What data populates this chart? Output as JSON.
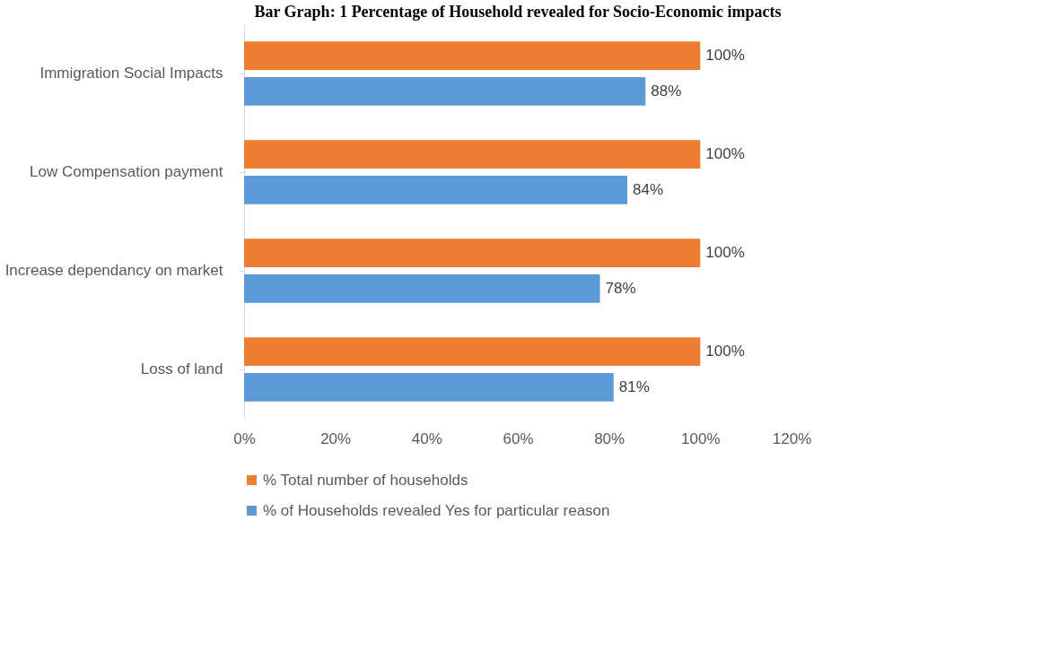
{
  "chart_data": {
    "type": "bar",
    "orientation": "horizontal",
    "title": "Bar Graph: 1 Percentage of Household revealed for Socio-Economic impacts",
    "categories": [
      "Immigration Social Impacts",
      "Low Compensation payment",
      "Increase dependancy on market",
      "Loss of land"
    ],
    "series": [
      {
        "name": "% Total number of households",
        "color": "#ed7d31",
        "values": [
          100,
          100,
          100,
          100
        ],
        "value_labels": [
          "100%",
          "100%",
          "100%",
          "100%"
        ]
      },
      {
        "name": "% of Households revealed Yes  for particular reason",
        "color": "#5b9bd5",
        "values": [
          88,
          84,
          78,
          81
        ],
        "value_labels": [
          "88%",
          "84%",
          "78%",
          "81%"
        ]
      }
    ],
    "xlim": [
      0,
      120
    ],
    "xticks": [
      {
        "value": 0,
        "label": "0%"
      },
      {
        "value": 20,
        "label": "20%"
      },
      {
        "value": 40,
        "label": "40%"
      },
      {
        "value": 60,
        "label": "60%"
      },
      {
        "value": 80,
        "label": "80%"
      },
      {
        "value": 100,
        "label": "100%"
      },
      {
        "value": 120,
        "label": "120%"
      }
    ],
    "grid": false,
    "legend": "bottom"
  }
}
